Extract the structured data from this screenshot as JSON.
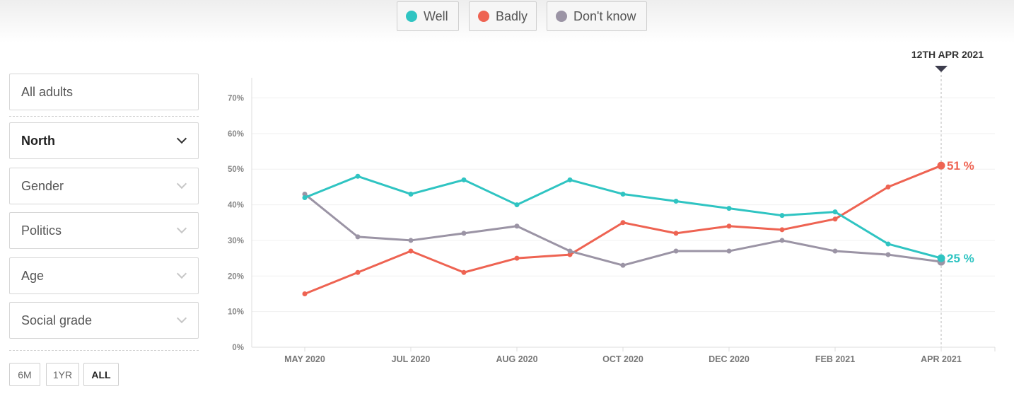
{
  "legend": [
    {
      "label": "Well",
      "color": "#2fc4c2"
    },
    {
      "label": "Badly",
      "color": "#ee6352"
    },
    {
      "label": "Don't know",
      "color": "#9b94a5"
    }
  ],
  "filters": {
    "audience": "All adults",
    "region": "North",
    "gender": "Gender",
    "politics": "Politics",
    "age": "Age",
    "social_grade": "Social grade"
  },
  "ranges": [
    {
      "label": "6M",
      "active": false
    },
    {
      "label": "1YR",
      "active": false
    },
    {
      "label": "ALL",
      "active": true
    }
  ],
  "marker": {
    "date_label": "12TH APR 2021"
  },
  "chart_data": {
    "type": "line",
    "x": [
      "May 2020",
      "Jun 2020",
      "Jul 2020",
      "Jul 2020",
      "Aug 2020",
      "Sep 2020",
      "Oct 2020",
      "Nov 2020",
      "Dec 2020",
      "Jan 2021",
      "Feb 2021",
      "Mar 2021",
      "Apr 2021"
    ],
    "x_ticks": [
      "MAY 2020",
      "JUL 2020",
      "AUG 2020",
      "OCT 2020",
      "DEC 2020",
      "FEB 2021",
      "APR 2021"
    ],
    "y_ticks": [
      "0%",
      "10%",
      "20%",
      "30%",
      "40%",
      "50%",
      "60%",
      "70%"
    ],
    "ylim": [
      0,
      70
    ],
    "grid": true,
    "series": [
      {
        "name": "Well",
        "color": "#2fc4c2",
        "values": [
          42,
          48,
          43,
          47,
          40,
          47,
          43,
          41,
          39,
          37,
          38,
          29,
          25
        ],
        "end_label": "25 %"
      },
      {
        "name": "Badly",
        "color": "#ee6352",
        "values": [
          15,
          21,
          27,
          21,
          25,
          26,
          35,
          32,
          34,
          33,
          36,
          45,
          51
        ],
        "end_label": "51 %"
      },
      {
        "name": "Don't know",
        "color": "#9b94a5",
        "values": [
          43,
          31,
          30,
          32,
          34,
          27,
          23,
          27,
          27,
          30,
          27,
          26,
          24
        ]
      }
    ]
  }
}
